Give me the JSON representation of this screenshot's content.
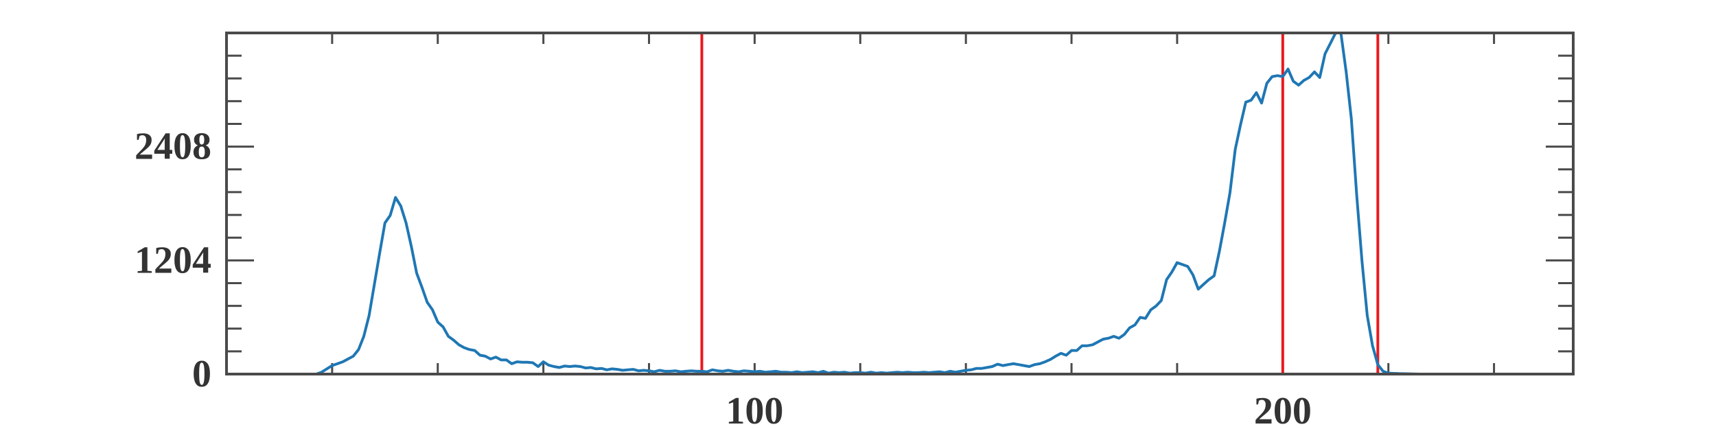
{
  "chart_data": {
    "type": "line",
    "title": "",
    "xlabel": "",
    "ylabel": "",
    "xlim": [
      0,
      255
    ],
    "ylim": [
      0,
      3612
    ],
    "grid": false,
    "x_ticks": [
      {
        "value": 100,
        "label": "100"
      },
      {
        "value": 200,
        "label": "200"
      }
    ],
    "y_ticks": [
      {
        "value": 0,
        "label": "0"
      },
      {
        "value": 1204,
        "label": "1204"
      },
      {
        "value": 2408,
        "label": "2408"
      }
    ],
    "vertical_lines": [
      90,
      200,
      218
    ],
    "series": [
      {
        "points": [
          [
            0,
            0
          ],
          [
            17,
            0
          ],
          [
            18,
            20
          ],
          [
            20,
            90
          ],
          [
            22,
            130
          ],
          [
            24,
            190
          ],
          [
            25,
            260
          ],
          [
            26,
            400
          ],
          [
            27,
            620
          ],
          [
            28,
            950
          ],
          [
            29,
            1280
          ],
          [
            30,
            1600
          ],
          [
            31,
            1680
          ],
          [
            32,
            1870
          ],
          [
            33,
            1780
          ],
          [
            34,
            1600
          ],
          [
            35,
            1350
          ],
          [
            36,
            1070
          ],
          [
            37,
            920
          ],
          [
            38,
            760
          ],
          [
            39,
            680
          ],
          [
            40,
            550
          ],
          [
            41,
            500
          ],
          [
            42,
            400
          ],
          [
            43,
            360
          ],
          [
            44,
            310
          ],
          [
            45,
            280
          ],
          [
            46,
            260
          ],
          [
            47,
            250
          ],
          [
            48,
            200
          ],
          [
            49,
            190
          ],
          [
            50,
            160
          ],
          [
            51,
            180
          ],
          [
            52,
            150
          ],
          [
            53,
            150
          ],
          [
            54,
            110
          ],
          [
            55,
            130
          ],
          [
            56,
            125
          ],
          [
            57,
            125
          ],
          [
            58,
            120
          ],
          [
            59,
            80
          ],
          [
            60,
            130
          ],
          [
            61,
            95
          ],
          [
            62,
            80
          ],
          [
            63,
            70
          ],
          [
            64,
            85
          ],
          [
            65,
            80
          ],
          [
            66,
            85
          ],
          [
            67,
            80
          ],
          [
            68,
            65
          ],
          [
            69,
            70
          ],
          [
            70,
            55
          ],
          [
            71,
            60
          ],
          [
            72,
            45
          ],
          [
            73,
            55
          ],
          [
            74,
            50
          ],
          [
            75,
            40
          ],
          [
            76,
            45
          ],
          [
            77,
            50
          ],
          [
            78,
            35
          ],
          [
            79,
            40
          ],
          [
            80,
            35
          ],
          [
            81,
            25
          ],
          [
            82,
            40
          ],
          [
            83,
            30
          ],
          [
            84,
            30
          ],
          [
            85,
            35
          ],
          [
            86,
            25
          ],
          [
            87,
            30
          ],
          [
            88,
            35
          ],
          [
            89,
            30
          ],
          [
            90,
            30
          ],
          [
            91,
            25
          ],
          [
            92,
            45
          ],
          [
            93,
            35
          ],
          [
            94,
            30
          ],
          [
            95,
            40
          ],
          [
            96,
            30
          ],
          [
            97,
            25
          ],
          [
            98,
            35
          ],
          [
            99,
            30
          ],
          [
            100,
            25
          ],
          [
            101,
            30
          ],
          [
            102,
            20
          ],
          [
            103,
            25
          ],
          [
            104,
            30
          ],
          [
            105,
            20
          ],
          [
            106,
            20
          ],
          [
            107,
            15
          ],
          [
            108,
            25
          ],
          [
            109,
            15
          ],
          [
            110,
            20
          ],
          [
            111,
            25
          ],
          [
            112,
            15
          ],
          [
            113,
            30
          ],
          [
            114,
            10
          ],
          [
            115,
            20
          ],
          [
            116,
            15
          ],
          [
            117,
            20
          ],
          [
            118,
            10
          ],
          [
            119,
            15
          ],
          [
            120,
            15
          ],
          [
            121,
            10
          ],
          [
            122,
            20
          ],
          [
            123,
            10
          ],
          [
            124,
            15
          ],
          [
            125,
            10
          ],
          [
            126,
            15
          ],
          [
            127,
            20
          ],
          [
            128,
            15
          ],
          [
            129,
            20
          ],
          [
            130,
            15
          ],
          [
            131,
            15
          ],
          [
            132,
            20
          ],
          [
            133,
            15
          ],
          [
            134,
            20
          ],
          [
            135,
            25
          ],
          [
            136,
            15
          ],
          [
            137,
            30
          ],
          [
            138,
            20
          ],
          [
            139,
            30
          ],
          [
            140,
            40
          ],
          [
            141,
            45
          ],
          [
            142,
            60
          ],
          [
            143,
            60
          ],
          [
            144,
            70
          ],
          [
            145,
            80
          ],
          [
            146,
            105
          ],
          [
            147,
            90
          ],
          [
            148,
            100
          ],
          [
            149,
            110
          ],
          [
            150,
            100
          ],
          [
            151,
            90
          ],
          [
            152,
            80
          ],
          [
            153,
            100
          ],
          [
            154,
            110
          ],
          [
            155,
            130
          ],
          [
            156,
            155
          ],
          [
            157,
            190
          ],
          [
            158,
            220
          ],
          [
            159,
            200
          ],
          [
            160,
            250
          ],
          [
            161,
            250
          ],
          [
            162,
            300
          ],
          [
            163,
            300
          ],
          [
            164,
            310
          ],
          [
            165,
            340
          ],
          [
            166,
            370
          ],
          [
            167,
            380
          ],
          [
            168,
            400
          ],
          [
            169,
            380
          ],
          [
            170,
            420
          ],
          [
            171,
            490
          ],
          [
            172,
            520
          ],
          [
            173,
            600
          ],
          [
            174,
            590
          ],
          [
            175,
            680
          ],
          [
            176,
            720
          ],
          [
            177,
            780
          ],
          [
            178,
            1000
          ],
          [
            179,
            1080
          ],
          [
            180,
            1180
          ],
          [
            181,
            1160
          ],
          [
            182,
            1140
          ],
          [
            183,
            1050
          ],
          [
            184,
            900
          ],
          [
            185,
            950
          ],
          [
            186,
            1000
          ],
          [
            187,
            1040
          ],
          [
            188,
            1300
          ],
          [
            189,
            1600
          ],
          [
            190,
            1920
          ],
          [
            191,
            2380
          ],
          [
            192,
            2640
          ],
          [
            193,
            2880
          ],
          [
            194,
            2900
          ],
          [
            195,
            2980
          ],
          [
            196,
            2870
          ],
          [
            197,
            3080
          ],
          [
            198,
            3150
          ],
          [
            199,
            3160
          ],
          [
            200,
            3150
          ],
          [
            201,
            3230
          ],
          [
            202,
            3100
          ],
          [
            203,
            3060
          ],
          [
            204,
            3110
          ],
          [
            205,
            3140
          ],
          [
            206,
            3200
          ],
          [
            207,
            3140
          ],
          [
            208,
            3390
          ],
          [
            209,
            3500
          ],
          [
            210,
            3612
          ],
          [
            211,
            3620
          ],
          [
            212,
            3200
          ],
          [
            213,
            2700
          ],
          [
            214,
            1900
          ],
          [
            215,
            1200
          ],
          [
            216,
            620
          ],
          [
            217,
            300
          ],
          [
            218,
            100
          ],
          [
            219,
            30
          ],
          [
            220,
            10
          ],
          [
            222,
            5
          ],
          [
            226,
            0
          ],
          [
            255,
            0
          ]
        ]
      }
    ]
  },
  "colors": {
    "series_line": "#1f77b4",
    "vertical_line": "#e8191d",
    "axis": "#4a4a4a",
    "tick_text": "#333333"
  }
}
